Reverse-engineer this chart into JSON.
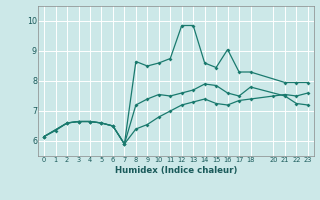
{
  "xlabel": "Humidex (Indice chaleur)",
  "bg_color": "#cce8e8",
  "grid_color": "#b0d8d8",
  "line_color": "#1a7a6e",
  "xlim": [
    -0.5,
    23.5
  ],
  "ylim": [
    5.5,
    10.5
  ],
  "yticks": [
    6,
    7,
    8,
    9,
    10
  ],
  "xticks": [
    0,
    1,
    2,
    3,
    4,
    5,
    6,
    7,
    8,
    9,
    10,
    11,
    12,
    13,
    14,
    15,
    16,
    17,
    18,
    20,
    21,
    22,
    23
  ],
  "line1_x": [
    0,
    1,
    2,
    3,
    4,
    5,
    6,
    7,
    8,
    9,
    10,
    11,
    12,
    13,
    14,
    15,
    16,
    17,
    18,
    20,
    21,
    22,
    23
  ],
  "line1_y": [
    6.15,
    6.35,
    6.6,
    6.65,
    6.65,
    6.6,
    6.5,
    5.9,
    6.4,
    6.55,
    6.8,
    7.0,
    7.2,
    7.3,
    7.4,
    7.25,
    7.2,
    7.35,
    7.4,
    7.5,
    7.55,
    7.5,
    7.6
  ],
  "line2_x": [
    0,
    2,
    3,
    4,
    5,
    6,
    7,
    8,
    9,
    10,
    11,
    12,
    13,
    14,
    15,
    16,
    17,
    18,
    21,
    22,
    23
  ],
  "line2_y": [
    6.15,
    6.6,
    6.65,
    6.65,
    6.6,
    6.5,
    5.9,
    8.65,
    8.5,
    8.6,
    8.75,
    9.85,
    9.85,
    8.6,
    8.45,
    9.05,
    8.3,
    8.3,
    7.95,
    7.95,
    7.95
  ],
  "line3_x": [
    0,
    2,
    3,
    4,
    5,
    6,
    7,
    8,
    9,
    10,
    11,
    12,
    13,
    14,
    15,
    16,
    17,
    18,
    21,
    22,
    23
  ],
  "line3_y": [
    6.15,
    6.6,
    6.65,
    6.65,
    6.6,
    6.5,
    5.9,
    7.2,
    7.4,
    7.55,
    7.5,
    7.6,
    7.7,
    7.9,
    7.85,
    7.6,
    7.5,
    7.8,
    7.5,
    7.25,
    7.2
  ]
}
